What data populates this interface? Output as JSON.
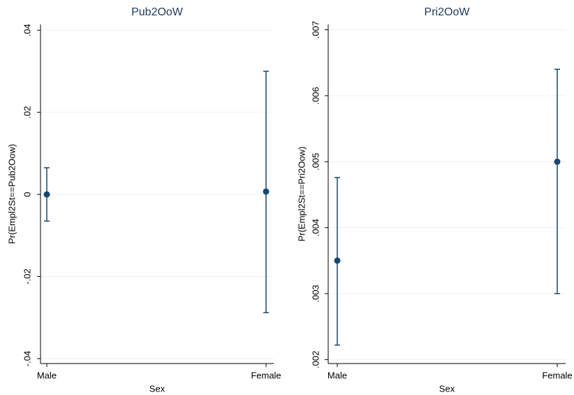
{
  "chart_data": [
    {
      "type": "errorbar",
      "title": "Pub2OoW",
      "x_label": "Sex",
      "y_label": "Pr(Empl2St==Pub2Oow)",
      "categories": [
        "Male",
        "Female"
      ],
      "values": [
        0.0,
        0.0007
      ],
      "lower": [
        -0.0065,
        -0.0288
      ],
      "upper": [
        0.0065,
        0.03
      ],
      "color": "#1a476f",
      "ylim": [
        -0.0412,
        0.0414
      ],
      "yticks": [
        {
          "value": -0.04,
          "label": "-.04"
        },
        {
          "value": -0.02,
          "label": "-.02"
        },
        0,
        {
          "value": 0.02,
          "label": ".02"
        },
        {
          "value": 0.04,
          "label": ".04"
        }
      ],
      "grid": true
    },
    {
      "type": "errorbar",
      "title": "Pri2OoW",
      "x_label": "Sex",
      "y_label": "Pr(Empl2St==Pri2Oow)",
      "categories": [
        "Male",
        "Female"
      ],
      "values": [
        0.0035,
        0.005
      ],
      "lower": [
        0.00222,
        0.003
      ],
      "upper": [
        0.00476,
        0.0064
      ],
      "color": "#1a476f",
      "ylim": [
        0.00194,
        0.00708
      ],
      "yticks": [
        {
          "value": 0.002,
          "label": ".002"
        },
        {
          "value": 0.003,
          "label": ".003"
        },
        {
          "value": 0.004,
          "label": ".004"
        },
        {
          "value": 0.005,
          "label": ".005"
        },
        {
          "value": 0.006,
          "label": ".006"
        },
        {
          "value": 0.007,
          "label": ".007"
        }
      ],
      "grid": true
    }
  ]
}
